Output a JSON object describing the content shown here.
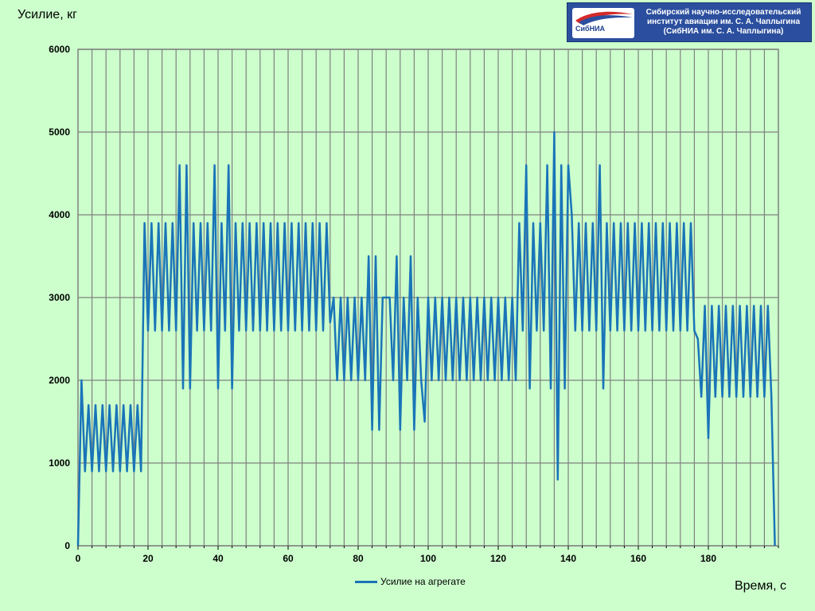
{
  "header": {
    "logo_badge": "СибНИА",
    "logo_lines": [
      "Сибирский научно-исследовательский",
      "институт авиации им. С. А. Чаплыгина",
      "(СибНИА им. С. А. Чаплыгина)"
    ]
  },
  "colors": {
    "background": "#ccffcc",
    "series": "#1a74b8",
    "grid": "#808080",
    "logo_bg": "#2b4f9e"
  },
  "chart_data": {
    "type": "line",
    "title": "",
    "xlabel": "Время, с",
    "ylabel": "Усилие, кг",
    "xlim": [
      0,
      200
    ],
    "ylim": [
      0,
      6000
    ],
    "xticks": [
      0,
      20,
      40,
      60,
      80,
      100,
      120,
      140,
      160,
      180
    ],
    "yticks": [
      0,
      1000,
      2000,
      3000,
      4000,
      5000,
      6000
    ],
    "grid": true,
    "legend_position": "bottom",
    "series": [
      {
        "name": "Усилие на агрегате",
        "color": "#1a74b8",
        "points": [
          [
            0,
            0
          ],
          [
            1,
            2000
          ],
          [
            2,
            900
          ],
          [
            3,
            1700
          ],
          [
            4,
            900
          ],
          [
            5,
            1700
          ],
          [
            6,
            900
          ],
          [
            7,
            1700
          ],
          [
            8,
            900
          ],
          [
            9,
            1700
          ],
          [
            10,
            900
          ],
          [
            11,
            1700
          ],
          [
            12,
            900
          ],
          [
            13,
            1700
          ],
          [
            14,
            900
          ],
          [
            15,
            1700
          ],
          [
            16,
            900
          ],
          [
            17,
            1700
          ],
          [
            18,
            900
          ],
          [
            19,
            3900
          ],
          [
            20,
            2600
          ],
          [
            21,
            3900
          ],
          [
            22,
            2600
          ],
          [
            23,
            3900
          ],
          [
            24,
            2600
          ],
          [
            25,
            3900
          ],
          [
            26,
            2600
          ],
          [
            27,
            3900
          ],
          [
            28,
            2600
          ],
          [
            29,
            4600
          ],
          [
            30,
            1900
          ],
          [
            31,
            4600
          ],
          [
            32,
            1900
          ],
          [
            33,
            3900
          ],
          [
            34,
            2600
          ],
          [
            35,
            3900
          ],
          [
            36,
            2600
          ],
          [
            37,
            3900
          ],
          [
            38,
            2600
          ],
          [
            39,
            4600
          ],
          [
            40,
            1900
          ],
          [
            41,
            3900
          ],
          [
            42,
            2600
          ],
          [
            43,
            4600
          ],
          [
            44,
            1900
          ],
          [
            45,
            3900
          ],
          [
            46,
            2600
          ],
          [
            47,
            3900
          ],
          [
            48,
            2600
          ],
          [
            49,
            3900
          ],
          [
            50,
            2600
          ],
          [
            51,
            3900
          ],
          [
            52,
            2600
          ],
          [
            53,
            3900
          ],
          [
            54,
            2600
          ],
          [
            55,
            3900
          ],
          [
            56,
            2600
          ],
          [
            57,
            3900
          ],
          [
            58,
            2600
          ],
          [
            59,
            3900
          ],
          [
            60,
            2600
          ],
          [
            61,
            3900
          ],
          [
            62,
            2600
          ],
          [
            63,
            3900
          ],
          [
            64,
            2600
          ],
          [
            65,
            3900
          ],
          [
            66,
            2600
          ],
          [
            67,
            3900
          ],
          [
            68,
            2600
          ],
          [
            69,
            3900
          ],
          [
            70,
            2600
          ],
          [
            71,
            3900
          ],
          [
            72,
            2700
          ],
          [
            73,
            3000
          ],
          [
            74,
            2000
          ],
          [
            75,
            3000
          ],
          [
            76,
            2000
          ],
          [
            77,
            3000
          ],
          [
            78,
            2000
          ],
          [
            79,
            3000
          ],
          [
            80,
            2000
          ],
          [
            81,
            3000
          ],
          [
            82,
            2000
          ],
          [
            83,
            3500
          ],
          [
            84,
            1400
          ],
          [
            85,
            3500
          ],
          [
            86,
            1400
          ],
          [
            87,
            3000
          ],
          [
            88,
            3000
          ],
          [
            89,
            3000
          ],
          [
            90,
            2000
          ],
          [
            91,
            3500
          ],
          [
            92,
            1400
          ],
          [
            93,
            3000
          ],
          [
            94,
            2000
          ],
          [
            95,
            3500
          ],
          [
            96,
            1400
          ],
          [
            97,
            3000
          ],
          [
            98,
            2000
          ],
          [
            99,
            1500
          ],
          [
            100,
            3000
          ],
          [
            101,
            2000
          ],
          [
            102,
            3000
          ],
          [
            103,
            2000
          ],
          [
            104,
            3000
          ],
          [
            105,
            2000
          ],
          [
            106,
            3000
          ],
          [
            107,
            2000
          ],
          [
            108,
            3000
          ],
          [
            109,
            2000
          ],
          [
            110,
            3000
          ],
          [
            111,
            2000
          ],
          [
            112,
            3000
          ],
          [
            113,
            2000
          ],
          [
            114,
            3000
          ],
          [
            115,
            2000
          ],
          [
            116,
            3000
          ],
          [
            117,
            2000
          ],
          [
            118,
            3000
          ],
          [
            119,
            2000
          ],
          [
            120,
            3000
          ],
          [
            121,
            2000
          ],
          [
            122,
            3000
          ],
          [
            123,
            2000
          ],
          [
            124,
            3000
          ],
          [
            125,
            2000
          ],
          [
            126,
            3900
          ],
          [
            127,
            2600
          ],
          [
            128,
            4600
          ],
          [
            129,
            1900
          ],
          [
            130,
            3900
          ],
          [
            131,
            2600
          ],
          [
            132,
            3900
          ],
          [
            133,
            2600
          ],
          [
            134,
            4600
          ],
          [
            135,
            1900
          ],
          [
            136,
            5000
          ],
          [
            137,
            800
          ],
          [
            138,
            4600
          ],
          [
            139,
            1900
          ],
          [
            140,
            4600
          ],
          [
            141,
            4000
          ],
          [
            142,
            2600
          ],
          [
            143,
            3900
          ],
          [
            144,
            2600
          ],
          [
            145,
            3900
          ],
          [
            146,
            2600
          ],
          [
            147,
            3900
          ],
          [
            148,
            2600
          ],
          [
            149,
            4600
          ],
          [
            150,
            1900
          ],
          [
            151,
            3900
          ],
          [
            152,
            2600
          ],
          [
            153,
            3900
          ],
          [
            154,
            2600
          ],
          [
            155,
            3900
          ],
          [
            156,
            2600
          ],
          [
            157,
            3900
          ],
          [
            158,
            2600
          ],
          [
            159,
            3900
          ],
          [
            160,
            2600
          ],
          [
            161,
            3900
          ],
          [
            162,
            2600
          ],
          [
            163,
            3900
          ],
          [
            164,
            2600
          ],
          [
            165,
            3900
          ],
          [
            166,
            2600
          ],
          [
            167,
            3900
          ],
          [
            168,
            2600
          ],
          [
            169,
            3900
          ],
          [
            170,
            2600
          ],
          [
            171,
            3900
          ],
          [
            172,
            2600
          ],
          [
            173,
            3900
          ],
          [
            174,
            2600
          ],
          [
            175,
            3900
          ],
          [
            176,
            2600
          ],
          [
            177,
            2500
          ],
          [
            178,
            1800
          ],
          [
            179,
            2900
          ],
          [
            180,
            1300
          ],
          [
            181,
            2900
          ],
          [
            182,
            1800
          ],
          [
            183,
            2900
          ],
          [
            184,
            1800
          ],
          [
            185,
            2900
          ],
          [
            186,
            1800
          ],
          [
            187,
            2900
          ],
          [
            188,
            1800
          ],
          [
            189,
            2900
          ],
          [
            190,
            1800
          ],
          [
            191,
            2900
          ],
          [
            192,
            1800
          ],
          [
            193,
            2900
          ],
          [
            194,
            1800
          ],
          [
            195,
            2900
          ],
          [
            196,
            1800
          ],
          [
            197,
            2900
          ],
          [
            198,
            1800
          ],
          [
            199,
            0
          ]
        ]
      }
    ]
  }
}
